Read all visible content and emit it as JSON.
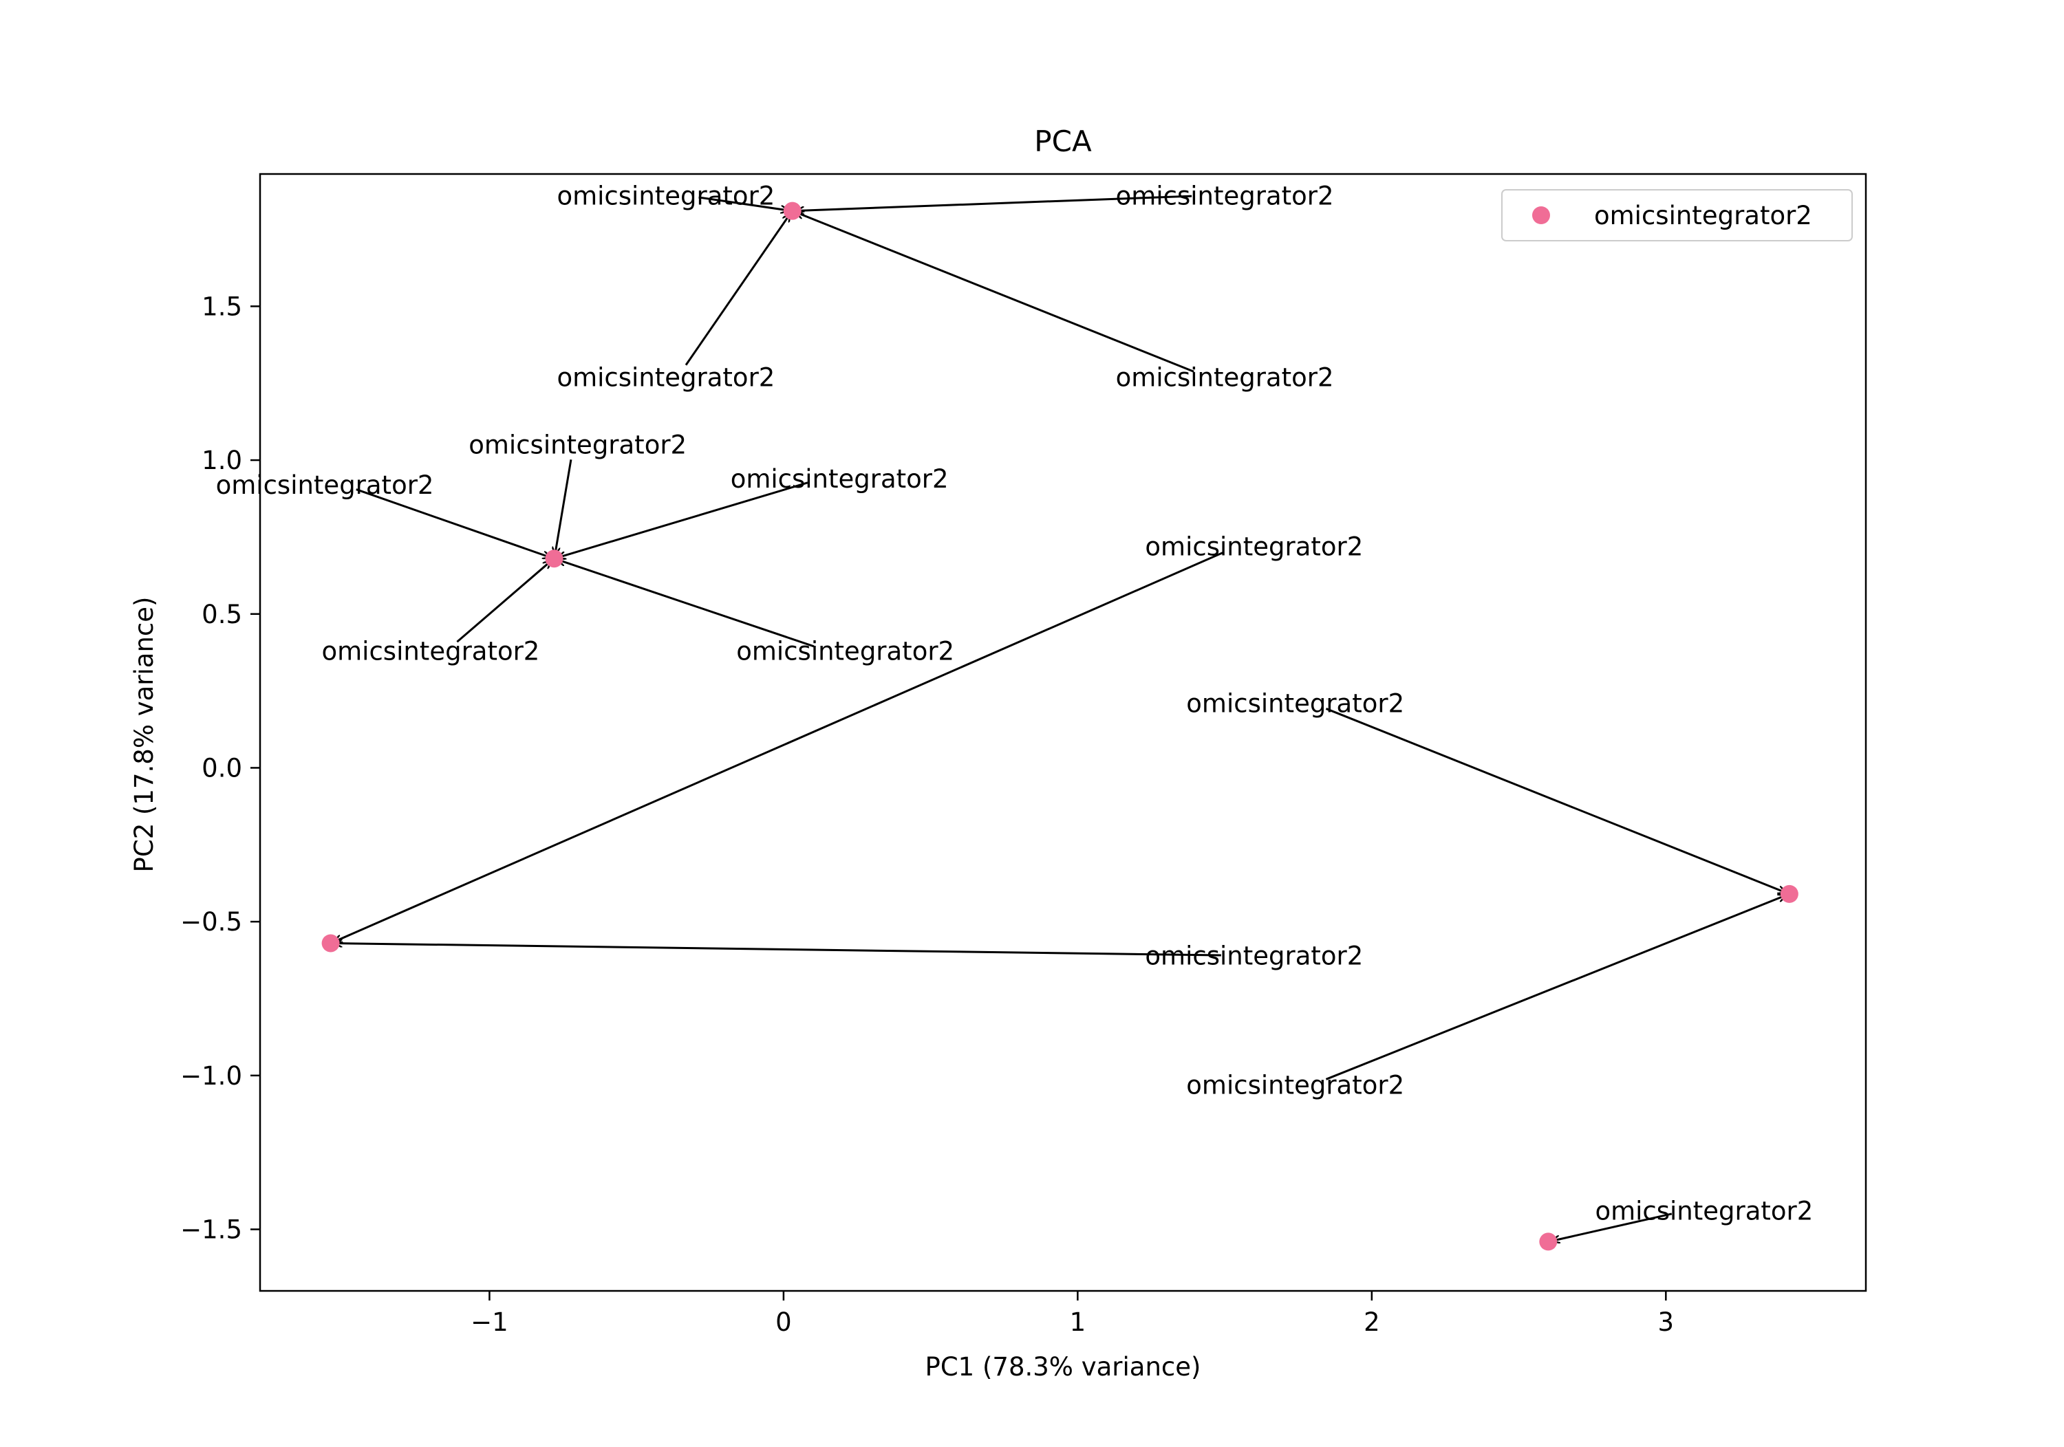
{
  "chart_data": {
    "type": "scatter",
    "title": "PCA",
    "xlabel": "PC1 (78.3% variance)",
    "ylabel": "PC2 (17.8% variance)",
    "xlim": [
      -1.78,
      3.68
    ],
    "ylim": [
      -1.7,
      1.93
    ],
    "xticks": [
      -1,
      0,
      1,
      2,
      3
    ],
    "yticks": [
      -1.5,
      -1.0,
      -0.5,
      0.0,
      0.5,
      1.0,
      1.5
    ],
    "xtick_labels": [
      "−1",
      "0",
      "1",
      "2",
      "3"
    ],
    "ytick_labels": [
      "−1.5",
      "−1.0",
      "−0.5",
      "0.0",
      "0.5",
      "1.0",
      "1.5"
    ],
    "grid": false,
    "legend_position": "top-right",
    "series": [
      {
        "name": "omicsintegrator2",
        "color": "#f06d96",
        "points": [
          {
            "x": 0.03,
            "y": 1.81
          },
          {
            "x": -0.78,
            "y": 0.68
          },
          {
            "x": -1.54,
            "y": -0.57
          },
          {
            "x": 3.42,
            "y": -0.41
          },
          {
            "x": 2.6,
            "y": -1.54
          }
        ]
      }
    ],
    "annotations": [
      {
        "text": "omicsintegrator2",
        "point": 0,
        "tx": -0.4,
        "ty": 1.86
      },
      {
        "text": "omicsintegrator2",
        "point": 0,
        "tx": 1.5,
        "ty": 1.86
      },
      {
        "text": "omicsintegrator2",
        "point": 0,
        "tx": -0.4,
        "ty": 1.27
      },
      {
        "text": "omicsintegrator2",
        "point": 0,
        "tx": 1.5,
        "ty": 1.27
      },
      {
        "text": "omicsintegrator2",
        "point": 1,
        "tx": -0.7,
        "ty": 1.05
      },
      {
        "text": "omicsintegrator2",
        "point": 1,
        "tx": -1.56,
        "ty": 0.92
      },
      {
        "text": "omicsintegrator2",
        "point": 1,
        "tx": 0.19,
        "ty": 0.94
      },
      {
        "text": "omicsintegrator2",
        "point": 1,
        "tx": -1.2,
        "ty": 0.38
      },
      {
        "text": "omicsintegrator2",
        "point": 1,
        "tx": 0.21,
        "ty": 0.38
      },
      {
        "text": "omicsintegrator2",
        "point": 2,
        "tx": 1.6,
        "ty": 0.72
      },
      {
        "text": "omicsintegrator2",
        "point": 2,
        "tx": 1.6,
        "ty": -0.61
      },
      {
        "text": "omicsintegrator2",
        "point": 3,
        "tx": 1.74,
        "ty": 0.21
      },
      {
        "text": "omicsintegrator2",
        "point": 3,
        "tx": 1.74,
        "ty": -1.03
      },
      {
        "text": "omicsintegrator2",
        "point": 4,
        "tx": 3.13,
        "ty": -1.44
      }
    ]
  }
}
